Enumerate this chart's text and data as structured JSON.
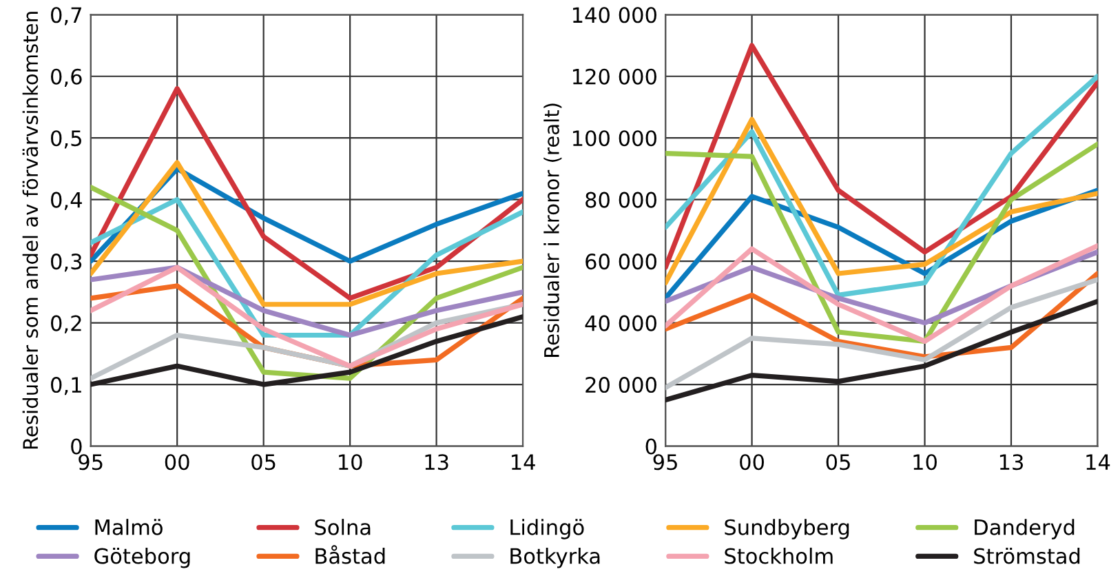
{
  "chart_data": [
    {
      "type": "line",
      "ylabel": "Residualer som andel av förvärvsinkomsten",
      "categories": [
        "95",
        "00",
        "05",
        "10",
        "13",
        "14"
      ],
      "ylim": [
        0,
        0.7
      ],
      "yticks": [
        {
          "value": 0,
          "label": "0"
        },
        {
          "value": 0.1,
          "label": "0,1"
        },
        {
          "value": 0.2,
          "label": "0,2"
        },
        {
          "value": 0.3,
          "label": "0,3"
        },
        {
          "value": 0.4,
          "label": "0,4"
        },
        {
          "value": 0.5,
          "label": "0,5"
        },
        {
          "value": 0.6,
          "label": "0,6"
        },
        {
          "value": 0.7,
          "label": "0,7"
        }
      ],
      "grid": true,
      "legend": "bottom",
      "series": [
        {
          "name": "Malmö",
          "color": "#0a7bbf",
          "values": [
            0.3,
            0.45,
            0.37,
            0.3,
            0.36,
            0.41
          ]
        },
        {
          "name": "Solna",
          "color": "#d0343a",
          "values": [
            0.31,
            0.58,
            0.34,
            0.24,
            0.29,
            0.4
          ]
        },
        {
          "name": "Lidingö",
          "color": "#5cc8d6",
          "values": [
            0.33,
            0.4,
            0.18,
            0.18,
            0.31,
            0.38
          ]
        },
        {
          "name": "Sundbyberg",
          "color": "#fbaa26",
          "values": [
            0.28,
            0.46,
            0.23,
            0.23,
            0.28,
            0.3
          ]
        },
        {
          "name": "Danderyd",
          "color": "#9bc84a",
          "values": [
            0.42,
            0.35,
            0.12,
            0.11,
            0.24,
            0.29
          ]
        },
        {
          "name": "Göteborg",
          "color": "#9e85c2",
          "values": [
            0.27,
            0.29,
            0.22,
            0.18,
            0.22,
            0.25
          ]
        },
        {
          "name": "Båstad",
          "color": "#f26b22",
          "values": [
            0.24,
            0.26,
            0.16,
            0.13,
            0.14,
            0.24
          ]
        },
        {
          "name": "Botkyrka",
          "color": "#bfc4c8",
          "values": [
            0.11,
            0.18,
            0.16,
            0.13,
            0.2,
            0.23
          ]
        },
        {
          "name": "Stockholm",
          "color": "#f4a3b0",
          "values": [
            0.22,
            0.29,
            0.19,
            0.13,
            0.19,
            0.23
          ]
        },
        {
          "name": "Strömstad",
          "color": "#231f20",
          "values": [
            0.1,
            0.13,
            0.1,
            0.12,
            0.17,
            0.21
          ]
        }
      ]
    },
    {
      "type": "line",
      "ylabel": "Residualer i kronor (realt)",
      "categories": [
        "95",
        "00",
        "05",
        "10",
        "13",
        "14"
      ],
      "ylim": [
        0,
        140000
      ],
      "yticks": [
        0,
        {
          "value": 20000,
          "label": "20 000"
        },
        {
          "value": 40000,
          "label": "40 000"
        },
        {
          "value": 60000,
          "label": "60 000"
        },
        {
          "value": 80000,
          "label": "80 000"
        },
        {
          "value": 100000,
          "label": "100 000"
        },
        {
          "value": 120000,
          "label": "120 000"
        },
        {
          "value": 140000,
          "label": "140 000"
        }
      ],
      "grid": true,
      "series": [
        {
          "color": "#0a7bbf",
          "values": [
            48000,
            81000,
            71000,
            56000,
            73000,
            83000
          ]
        },
        {
          "color": "#d0343a",
          "values": [
            58000,
            130000,
            83000,
            63000,
            81000,
            118000
          ]
        },
        {
          "color": "#5cc8d6",
          "values": [
            71000,
            102000,
            49000,
            53000,
            95000,
            120000
          ]
        },
        {
          "color": "#fbaa26",
          "values": [
            53000,
            106000,
            56000,
            59000,
            76000,
            82000
          ]
        },
        {
          "color": "#9bc84a",
          "values": [
            95000,
            94000,
            37000,
            34000,
            80000,
            98000
          ]
        },
        {
          "color": "#9e85c2",
          "values": [
            47000,
            58000,
            48000,
            40000,
            52000,
            63000
          ]
        },
        {
          "color": "#f26b22",
          "values": [
            38000,
            49000,
            34000,
            29000,
            32000,
            56000
          ]
        },
        {
          "color": "#bfc4c8",
          "values": [
            19000,
            35000,
            33000,
            28000,
            45000,
            54000
          ]
        },
        {
          "color": "#f4a3b0",
          "values": [
            39000,
            64000,
            46000,
            34000,
            52000,
            65000
          ]
        },
        {
          "color": "#231f20",
          "values": [
            15000,
            23000,
            21000,
            26000,
            37000,
            47000
          ]
        }
      ]
    }
  ]
}
